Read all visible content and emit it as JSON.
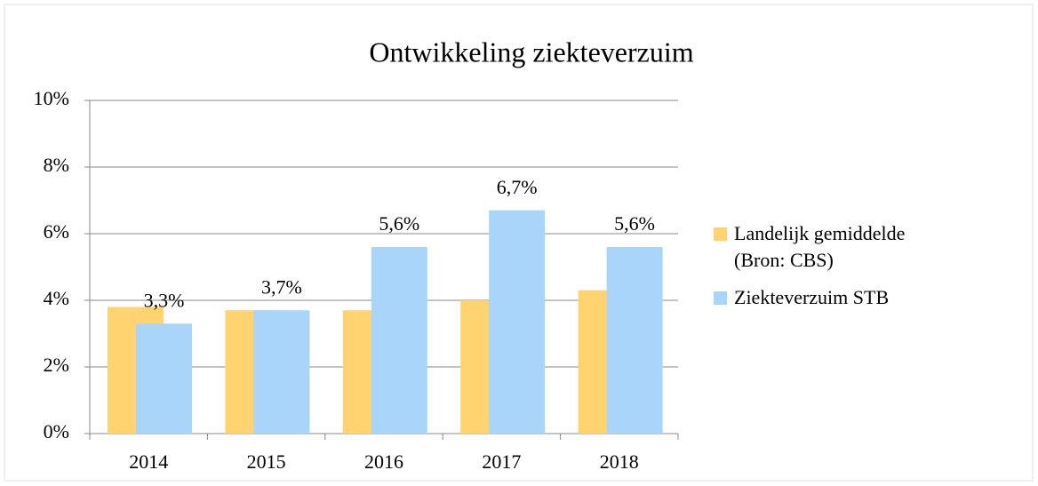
{
  "chart_data": {
    "type": "bar",
    "title": "Ontwikkeling ziekteverzuim",
    "categories": [
      "2014",
      "2015",
      "2016",
      "2017",
      "2018"
    ],
    "series": [
      {
        "name": "Landelijk gemiddelde (Bron: CBS)",
        "color": "#ffd470",
        "values": [
          3.8,
          3.7,
          3.7,
          4.0,
          4.3
        ]
      },
      {
        "name": "Ziekteverzuim STB",
        "color": "#a9d5fb",
        "values": [
          3.3,
          3.7,
          5.6,
          6.7,
          5.6
        ],
        "value_labels": [
          "3,3%",
          "3,7%",
          "5,6%",
          "6,7%",
          "5,6%"
        ]
      }
    ],
    "ylim": [
      0,
      10
    ],
    "yticks": [
      {
        "value": 0,
        "label": "0%"
      },
      {
        "value": 2,
        "label": "2%"
      },
      {
        "value": 4,
        "label": "4%"
      },
      {
        "value": 6,
        "label": "6%"
      },
      {
        "value": 8,
        "label": "8%"
      },
      {
        "value": 10,
        "label": "10%"
      }
    ],
    "grid": true,
    "legend": "right"
  }
}
